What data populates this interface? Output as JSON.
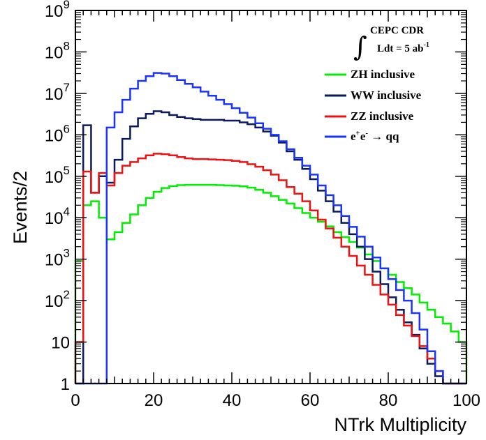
{
  "chart_data": {
    "type": "line",
    "style": "step-histogram",
    "xlabel": "NTrk Multiplicity",
    "ylabel": "Events/2",
    "xlim": [
      0,
      100
    ],
    "ylim": [
      1,
      1000000000
    ],
    "yscale": "log",
    "grid": false,
    "legend_position": "top-right",
    "x_ticks": [
      {
        "value": 0,
        "label": "0"
      },
      {
        "value": 20,
        "label": "20"
      },
      {
        "value": 40,
        "label": "40"
      },
      {
        "value": 60,
        "label": "60"
      },
      {
        "value": 80,
        "label": "80"
      },
      {
        "value": 100,
        "label": "100"
      }
    ],
    "y_ticks": [
      {
        "value": 1,
        "base": "1",
        "exp": ""
      },
      {
        "value": 10,
        "base": "10",
        "exp": ""
      },
      {
        "value": 100,
        "base": "10",
        "exp": "2"
      },
      {
        "value": 1000,
        "base": "10",
        "exp": "3"
      },
      {
        "value": 10000,
        "base": "10",
        "exp": "4"
      },
      {
        "value": 100000,
        "base": "10",
        "exp": "5"
      },
      {
        "value": 1000000,
        "base": "10",
        "exp": "6"
      },
      {
        "value": 10000000,
        "base": "10",
        "exp": "7"
      },
      {
        "value": 100000000,
        "base": "10",
        "exp": "8"
      },
      {
        "value": 1000000000,
        "base": "10",
        "exp": "9"
      }
    ],
    "annotation": {
      "line1": "CEPC CDR",
      "line2_main": "Ldt = 5 ab",
      "line2_sup": "-1"
    },
    "bin_edges": [
      0,
      2,
      4,
      6,
      8,
      10,
      12,
      14,
      16,
      18,
      20,
      22,
      24,
      26,
      28,
      30,
      32,
      34,
      36,
      38,
      40,
      42,
      44,
      46,
      48,
      50,
      52,
      54,
      56,
      58,
      60,
      62,
      64,
      66,
      68,
      70,
      72,
      74,
      76,
      78,
      80,
      82,
      84,
      86,
      88,
      90,
      92,
      94,
      96,
      98,
      100
    ],
    "series": [
      {
        "name": "ZH inclusive",
        "color": "#00ee00",
        "values": [
          900,
          20000,
          25000,
          10000,
          3000,
          4500,
          7500,
          12000,
          20000,
          30000,
          42000,
          52000,
          58000,
          61000,
          62000,
          62000,
          62000,
          62000,
          61000,
          60000,
          59000,
          57000,
          53000,
          47000,
          40000,
          33000,
          27000,
          22000,
          17000,
          13000,
          10000,
          8000,
          6200,
          4500,
          3400,
          2600,
          1900,
          1300,
          900,
          600,
          420,
          280,
          200,
          140,
          90,
          60,
          40,
          28,
          18,
          10
        ]
      },
      {
        "name": "WW inclusive",
        "color": "#0a1a5c",
        "values": [
          1,
          1700000,
          40000,
          100000,
          70000,
          250000,
          800000,
          1600000,
          2500000,
          3200000,
          3700000,
          3500000,
          3000000,
          2700000,
          2500000,
          2400000,
          2300000,
          2300000,
          2300000,
          2200000,
          2200000,
          2000000,
          1800000,
          1500000,
          1200000,
          950000,
          650000,
          400000,
          250000,
          150000,
          85000,
          45000,
          25000,
          14000,
          7500,
          4000,
          2000,
          1000,
          500,
          250,
          120,
          60,
          30,
          15,
          7,
          3,
          1.5,
          1,
          1,
          1
        ]
      },
      {
        "name": "ZZ inclusive",
        "color": "#ee1111",
        "values": [
          10,
          130000,
          40000,
          120000,
          60000,
          120000,
          180000,
          220000,
          270000,
          320000,
          350000,
          340000,
          320000,
          290000,
          270000,
          260000,
          260000,
          255000,
          250000,
          245000,
          235000,
          220000,
          195000,
          170000,
          140000,
          110000,
          80000,
          55000,
          38000,
          25000,
          15000,
          9000,
          5500,
          3300,
          2000,
          1200,
          700,
          420,
          240,
          140,
          80,
          45,
          25,
          14,
          8,
          4,
          2,
          1,
          1,
          1
        ]
      },
      {
        "name": "e+e- → qq",
        "legend_main": "e",
        "legend_sup1": "+",
        "legend_mid": "e",
        "legend_sup2": "-",
        "legend_tail": " → qq",
        "color": "#1a33ff",
        "values": [
          1,
          1,
          1,
          1,
          1500000,
          3500000,
          7000000,
          13000000,
          20000000,
          26000000,
          31000000,
          30000000,
          26000000,
          21000000,
          17000000,
          14000000,
          11000000,
          8800000,
          7000000,
          5500000,
          4400000,
          3400000,
          2600000,
          1900000,
          1400000,
          1000000,
          700000,
          450000,
          280000,
          180000,
          110000,
          60000,
          35000,
          20000,
          11000,
          6000,
          3500,
          2000,
          1100,
          600,
          330,
          180,
          100,
          50,
          20,
          6,
          2,
          1,
          1,
          1
        ]
      }
    ]
  }
}
